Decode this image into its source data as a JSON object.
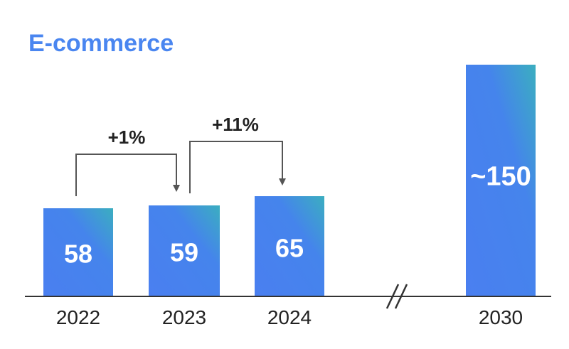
{
  "chart_data": {
    "type": "bar",
    "title": "E-commerce",
    "categories": [
      "2022",
      "2023",
      "2024",
      "2030"
    ],
    "values": [
      58,
      59,
      65,
      150
    ],
    "value_labels": [
      "58",
      "59",
      "65",
      "~150"
    ],
    "axis_break_between": [
      "2024",
      "2030"
    ],
    "annotations": [
      {
        "from": "2022",
        "to": "2023",
        "label": "+1%"
      },
      {
        "from": "2023",
        "to": "2024",
        "label": "+11%"
      }
    ],
    "xlabel": "",
    "ylabel": "",
    "grid": false,
    "legend": "none"
  },
  "colors": {
    "title": "#4A86F0",
    "bar_top": "#3BAEC0",
    "bar_main": "#4584EC",
    "bar_bottom": "#4A7FF0",
    "axis": "#333333",
    "bracket": "#555555"
  }
}
